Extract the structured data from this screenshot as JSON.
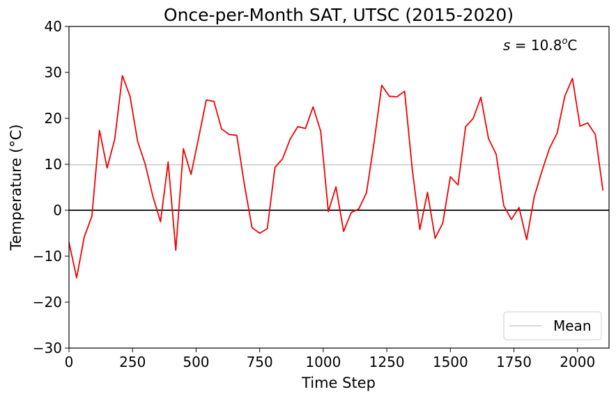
{
  "chart_data": {
    "type": "line",
    "title": "Once-per-Month SAT, UTSC (2015-2020)",
    "xlabel": "Time Step",
    "ylabel": "Temperature (°C)",
    "annotation": "s = 10.8°C",
    "annotation_parts": {
      "symbol": "s",
      "equals": " = ",
      "value": "10.8",
      "sup": "o",
      "unit": "C"
    },
    "xlim": [
      0,
      2124
    ],
    "ylim": [
      -30,
      40
    ],
    "xticks": [
      0,
      250,
      500,
      750,
      1000,
      1250,
      1500,
      1750,
      2000
    ],
    "yticks": [
      -30,
      -20,
      -10,
      0,
      10,
      20,
      30,
      40
    ],
    "xtick_labels": [
      "0",
      "250",
      "500",
      "750",
      "1000",
      "1250",
      "1500",
      "1750",
      "2000"
    ],
    "ytick_labels": [
      "−30",
      "−20",
      "−10",
      "0",
      "10",
      "20",
      "30",
      "40"
    ],
    "grid": false,
    "legend": {
      "position": "lower-right",
      "entries": [
        {
          "label": "Mean",
          "color": "#cccccc"
        }
      ]
    },
    "reference_lines": [
      {
        "name": "Mean",
        "y": 9.9,
        "color": "#cccccc"
      },
      {
        "name": "",
        "y": 0,
        "color": "#000000"
      }
    ],
    "series": [
      {
        "color": "#ee0000",
        "x": [
          0,
          30,
          60,
          90,
          120,
          150,
          180,
          210,
          240,
          270,
          300,
          330,
          360,
          390,
          420,
          450,
          480,
          510,
          540,
          570,
          600,
          630,
          660,
          690,
          720,
          750,
          780,
          810,
          840,
          870,
          900,
          930,
          960,
          990,
          1020,
          1050,
          1080,
          1110,
          1140,
          1170,
          1200,
          1230,
          1260,
          1290,
          1320,
          1350,
          1380,
          1410,
          1440,
          1470,
          1500,
          1530,
          1560,
          1590,
          1620,
          1650,
          1680,
          1710,
          1740,
          1770,
          1800,
          1830,
          1860,
          1890,
          1920,
          1950,
          1980,
          2010,
          2040,
          2070,
          2100
        ],
        "y": [
          -7.0,
          -14.7,
          -5.8,
          -1.3,
          17.4,
          9.2,
          15.5,
          29.3,
          24.8,
          15.0,
          10.0,
          3.0,
          -2.5,
          10.5,
          -8.7,
          13.4,
          7.8,
          15.8,
          24.0,
          23.7,
          17.7,
          16.5,
          16.3,
          5.5,
          -3.8,
          -5.0,
          -4.0,
          9.3,
          11.2,
          15.5,
          18.2,
          17.8,
          22.5,
          17.2,
          -0.3,
          5.1,
          -4.6,
          -0.5,
          0.3,
          3.8,
          14.8,
          27.2,
          24.8,
          24.7,
          25.9,
          9.0,
          -4.2,
          3.9,
          -6.1,
          -2.8,
          7.3,
          5.5,
          18.2,
          20.0,
          24.6,
          15.6,
          12.2,
          1.0,
          -2.0,
          0.6,
          -6.4,
          3.0,
          8.5,
          13.5,
          16.8,
          24.8,
          28.7,
          18.3,
          19.0,
          16.5,
          4.3
        ]
      }
    ]
  }
}
